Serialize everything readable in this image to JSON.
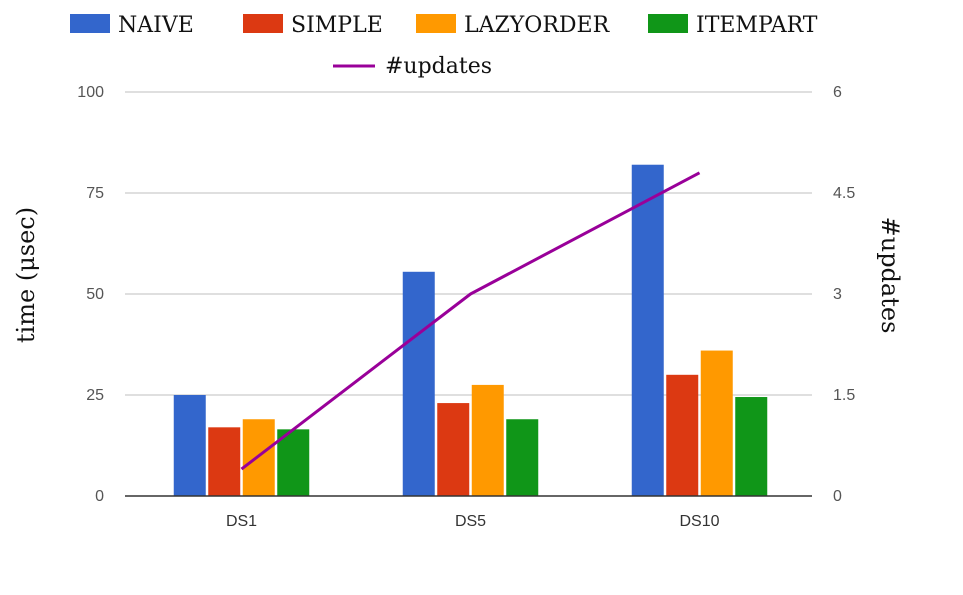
{
  "chart_data": {
    "type": "bar",
    "categories": [
      "DS1",
      "DS5",
      "DS10"
    ],
    "series": [
      {
        "name": "Naive",
        "legend_text": "NAIVE",
        "color": "#3366cc",
        "values": [
          25,
          55.5,
          82
        ]
      },
      {
        "name": "Simple",
        "legend_text": "SIMPLE",
        "color": "#dc3912",
        "values": [
          17,
          23,
          30
        ]
      },
      {
        "name": "LazyOrder",
        "legend_text": "LAZYORDER",
        "color": "#ff9900",
        "values": [
          19,
          27.5,
          36
        ]
      },
      {
        "name": "ItemPart",
        "legend_text": "ITEMPART",
        "color": "#109618",
        "values": [
          16.5,
          19,
          24.5
        ]
      }
    ],
    "line_series": {
      "name": "#updates",
      "color": "#990099",
      "axis": "right",
      "values": [
        0.4,
        3.0,
        4.8
      ]
    },
    "ylabel": "time (μsec)",
    "ylabel_right": "#updates",
    "ylim": [
      0,
      100
    ],
    "ylim_right": [
      0,
      6
    ],
    "y_ticks": [
      "0",
      "25",
      "50",
      "75",
      "100"
    ],
    "y_ticks_right": [
      "0",
      "1.5",
      "3",
      "4.5",
      "6"
    ],
    "grid": true,
    "legend_position": "top"
  }
}
